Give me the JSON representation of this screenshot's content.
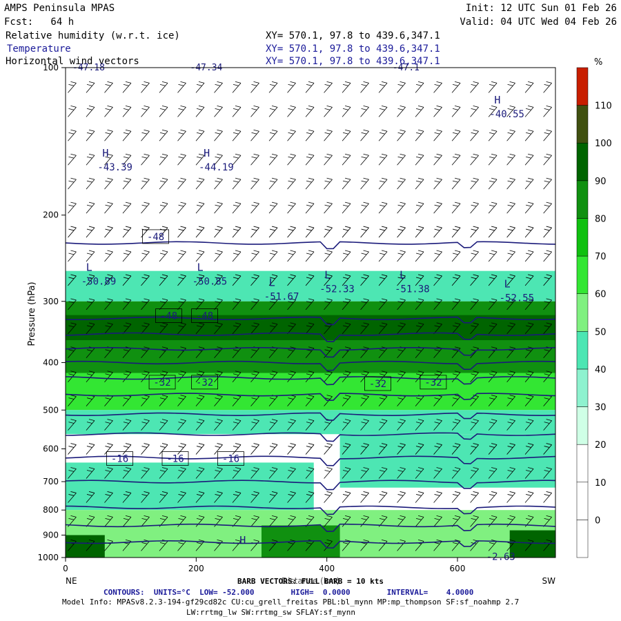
{
  "header": {
    "model": "AMPS Peninsula MPAS",
    "init": "Init: 12 UTC Sun 01 Feb 26",
    "fcst": "Fcst:   64 h",
    "valid": "Valid: 04 UTC Wed 04 Feb 26",
    "fields": [
      {
        "name": "Relative humidity (w.r.t. ice)",
        "xy": "XY= 570.1, 97.8 to 439.6,347.1"
      },
      {
        "name": "Temperature",
        "xy": "XY= 570.1, 97.8 to 439.6,347.1"
      },
      {
        "name": "Horizontal wind vectors",
        "xy": "XY= 570.1, 97.8 to 439.6,347.1"
      }
    ]
  },
  "footer": {
    "barb": "BARB VECTORS: FULL BARB = 10 kts",
    "contours": "CONTOURS:  UNITS=°C  LOW= -52.000        HIGH=  0.0000        INTERVAL=    4.0000",
    "model_info": "Model Info: MPASv8.2.3-194-gf29cd82c CU:cu_grell_freitas PBL:bl_mynn MP:mp_thompson SF:sf_noahmp 2.7",
    "model_info2": "LW:rrtmg_lw SW:rrtmg_sw SFLAY:sf_mynn"
  },
  "colors": {
    "plot_border": "#000000",
    "temp_contour": "#1a1a7a",
    "barb": "#000000"
  },
  "chart_data": {
    "type": "heatmap",
    "xlabel": "Distance (km)",
    "ylabel": "Pressure (hPa)",
    "xlim": [
      0,
      750
    ],
    "ylim": [
      1000,
      100
    ],
    "y_scale": "log",
    "x_ticks": [
      0,
      200,
      400,
      600
    ],
    "y_ticks": [
      100,
      200,
      300,
      400,
      500,
      600,
      700,
      800,
      900,
      1000
    ],
    "x_end_labels": {
      "left": "NE",
      "right": "SW"
    },
    "colorbar": {
      "unit": "%",
      "levels": [
        0,
        10,
        20,
        30,
        40,
        50,
        60,
        70,
        80,
        90,
        100,
        110
      ],
      "colors": [
        "#ffffff",
        "#ffffff",
        "#ffffff",
        "#cfffe6",
        "#8ef2cf",
        "#4de6b3",
        "#80f080",
        "#33e633",
        "#10c010",
        "#109010",
        "#006400",
        "#405010",
        "#c81e00"
      ]
    },
    "rh_regions": [
      {
        "x0": 0,
        "x1": 750,
        "p_top": 260,
        "p_bot": 300,
        "rh": 40
      },
      {
        "x0": 0,
        "x1": 750,
        "p_top": 300,
        "p_bot": 420,
        "rh": 80
      },
      {
        "x0": 0,
        "x1": 750,
        "p_top": 320,
        "p_bot": 360,
        "rh": 90
      },
      {
        "x0": 0,
        "x1": 750,
        "p_top": 420,
        "p_bot": 500,
        "rh": 60
      },
      {
        "x0": 0,
        "x1": 750,
        "p_top": 500,
        "p_bot": 560,
        "rh": 40
      },
      {
        "x0": 420,
        "x1": 750,
        "p_top": 560,
        "p_bot": 720,
        "rh": 40
      },
      {
        "x0": 0,
        "x1": 380,
        "p_top": 640,
        "p_bot": 800,
        "rh": 40
      },
      {
        "x0": 0,
        "x1": 750,
        "p_top": 800,
        "p_bot": 1000,
        "rh": 50
      },
      {
        "x0": 300,
        "x1": 420,
        "p_top": 860,
        "p_bot": 1000,
        "rh": 80
      },
      {
        "x0": 0,
        "x1": 60,
        "p_top": 900,
        "p_bot": 1000,
        "rh": 90
      },
      {
        "x0": 680,
        "x1": 750,
        "p_top": 880,
        "p_bot": 1000,
        "rh": 90
      }
    ],
    "temperature_contours": [
      {
        "value": -48,
        "p": 228
      },
      {
        "value": -48,
        "p": 325
      },
      {
        "value": -44,
        "p": 350
      },
      {
        "value": -40,
        "p": 375
      },
      {
        "value": -36,
        "p": 400
      },
      {
        "value": -32,
        "p": 430
      },
      {
        "value": -28,
        "p": 465
      },
      {
        "value": -24,
        "p": 510
      },
      {
        "value": -20,
        "p": 560
      },
      {
        "value": -16,
        "p": 625
      },
      {
        "value": -12,
        "p": 700
      },
      {
        "value": -8,
        "p": 790
      },
      {
        "value": -4,
        "p": 860
      },
      {
        "value": 0,
        "p": 930
      }
    ],
    "contour_labels": [
      {
        "text": "-48",
        "x": 120,
        "p": 222
      },
      {
        "text": "-48",
        "x": 140,
        "p": 322
      },
      {
        "text": "-48",
        "x": 195,
        "p": 322
      },
      {
        "text": "-32",
        "x": 130,
        "p": 440
      },
      {
        "text": "-32",
        "x": 195,
        "p": 440
      },
      {
        "text": "-32",
        "x": 460,
        "p": 443
      },
      {
        "text": "-32",
        "x": 545,
        "p": 440
      },
      {
        "text": "-16",
        "x": 65,
        "p": 630
      },
      {
        "text": "-16",
        "x": 150,
        "p": 630
      },
      {
        "text": "-16",
        "x": 235,
        "p": 630
      }
    ],
    "extrema": [
      {
        "text": "H",
        "value": "-43.39",
        "x": 30,
        "p": 158
      },
      {
        "text": "H",
        "value": "-44.19",
        "x": 185,
        "p": 158
      },
      {
        "text": "L",
        "value": "-50.89",
        "x": 5,
        "p": 270
      },
      {
        "text": "L",
        "value": "-50.85",
        "x": 175,
        "p": 270
      },
      {
        "text": "L",
        "value": "-51.67",
        "x": 285,
        "p": 290
      },
      {
        "text": "L",
        "value": "-52.33",
        "x": 370,
        "p": 280
      },
      {
        "text": "L",
        "value": "-51.38",
        "x": 485,
        "p": 280
      },
      {
        "text": "L",
        "value": "-52.55",
        "x": 645,
        "p": 292
      },
      {
        "text": "H",
        "value": "-40.55",
        "x": 630,
        "p": 123
      },
      {
        "text": "H",
        "value": "",
        "x": 240,
        "p": 975
      },
      {
        "text": "",
        "value": "-2.63",
        "x": 625,
        "p": 985
      }
    ],
    "top_edge_labels": [
      {
        "text": "-47.18",
        "x": 0
      },
      {
        "text": "-47.34",
        "x": 180
      },
      {
        "text": "-47.1",
        "x": 490
      }
    ]
  }
}
